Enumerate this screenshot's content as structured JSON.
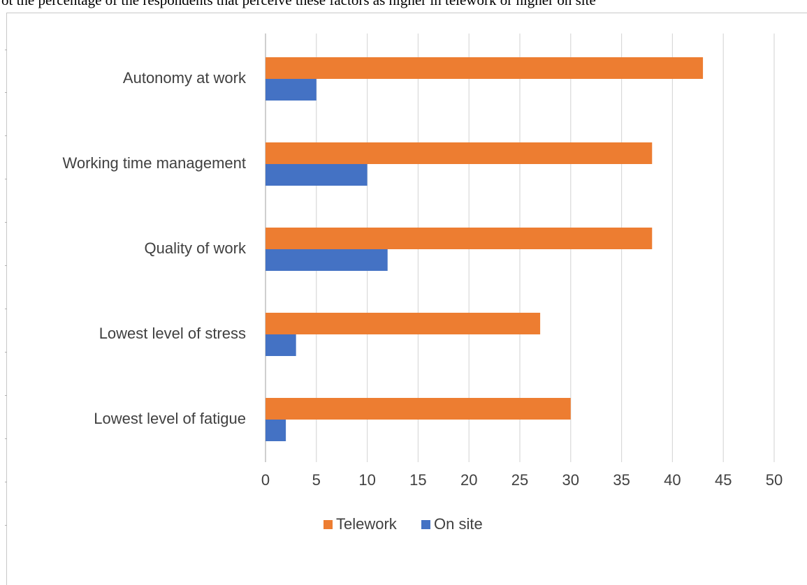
{
  "caption": "ot the percentage of the respondents that perceive these factors as higher in telework or higher on site",
  "chart_data": {
    "type": "bar",
    "orientation": "horizontal",
    "categories": [
      "Autonomy at work",
      "Working time management",
      "Quality of work",
      "Lowest level of stress",
      "Lowest level of fatigue"
    ],
    "series": [
      {
        "name": "Telework",
        "color": "#ED7D31",
        "values": [
          43,
          38,
          38,
          27,
          30
        ]
      },
      {
        "name": "On site",
        "color": "#4472C4",
        "values": [
          5,
          10,
          12,
          3,
          2
        ]
      }
    ],
    "xticks": [
      "0",
      "5",
      "10",
      "15",
      "20",
      "25",
      "30",
      "35",
      "40",
      "45",
      "50"
    ],
    "xlim": [
      0,
      50
    ],
    "grid": true,
    "legend": "bottom",
    "title": "",
    "xlabel": "",
    "ylabel": ""
  }
}
